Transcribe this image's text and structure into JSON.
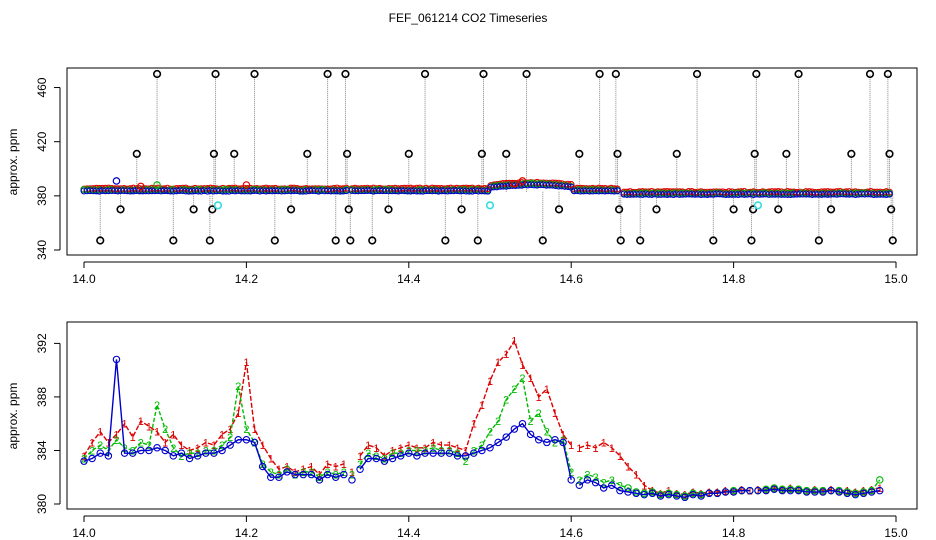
{
  "title": "FEF_061214  CO2 Timeseries",
  "chart_data": [
    {
      "type": "scatter",
      "ylabel": "approx. ppm",
      "xlim": [
        14.0,
        15.0
      ],
      "ylim": [
        340,
        470
      ],
      "x_ticks": [
        "14.0",
        "14.2",
        "14.4",
        "14.6",
        "14.8",
        "15.0"
      ],
      "y_ticks": [
        "340",
        "380",
        "420",
        "460"
      ],
      "colors": {
        "raw": "#000000",
        "s1": "#dd0000",
        "s2": "#00bb00",
        "s3": "#0000cc",
        "flag": "#33dddd",
        "drop": "#888888"
      },
      "spikes": [
        {
          "x": 14.02,
          "y": 347
        },
        {
          "x": 14.045,
          "y": 370
        },
        {
          "x": 14.065,
          "y": 411
        },
        {
          "x": 14.09,
          "y": 470
        },
        {
          "x": 14.11,
          "y": 347
        },
        {
          "x": 14.135,
          "y": 370
        },
        {
          "x": 14.155,
          "y": 347
        },
        {
          "x": 14.158,
          "y": 370
        },
        {
          "x": 14.16,
          "y": 411
        },
        {
          "x": 14.162,
          "y": 470
        },
        {
          "x": 14.185,
          "y": 411
        },
        {
          "x": 14.21,
          "y": 470
        },
        {
          "x": 14.235,
          "y": 347
        },
        {
          "x": 14.255,
          "y": 370
        },
        {
          "x": 14.275,
          "y": 411
        },
        {
          "x": 14.3,
          "y": 470
        },
        {
          "x": 14.31,
          "y": 347
        },
        {
          "x": 14.322,
          "y": 470
        },
        {
          "x": 14.324,
          "y": 411
        },
        {
          "x": 14.326,
          "y": 370
        },
        {
          "x": 14.328,
          "y": 347
        },
        {
          "x": 14.355,
          "y": 347
        },
        {
          "x": 14.375,
          "y": 370
        },
        {
          "x": 14.4,
          "y": 411
        },
        {
          "x": 14.42,
          "y": 470
        },
        {
          "x": 14.445,
          "y": 347
        },
        {
          "x": 14.465,
          "y": 370
        },
        {
          "x": 14.485,
          "y": 347
        },
        {
          "x": 14.49,
          "y": 411
        },
        {
          "x": 14.492,
          "y": 470
        },
        {
          "x": 14.52,
          "y": 411
        },
        {
          "x": 14.545,
          "y": 470
        },
        {
          "x": 14.565,
          "y": 347
        },
        {
          "x": 14.585,
          "y": 370
        },
        {
          "x": 14.61,
          "y": 411
        },
        {
          "x": 14.635,
          "y": 470
        },
        {
          "x": 14.655,
          "y": 470
        },
        {
          "x": 14.657,
          "y": 411
        },
        {
          "x": 14.659,
          "y": 370
        },
        {
          "x": 14.661,
          "y": 347
        },
        {
          "x": 14.685,
          "y": 347
        },
        {
          "x": 14.705,
          "y": 370
        },
        {
          "x": 14.73,
          "y": 411
        },
        {
          "x": 14.755,
          "y": 470
        },
        {
          "x": 14.775,
          "y": 347
        },
        {
          "x": 14.8,
          "y": 370
        },
        {
          "x": 14.822,
          "y": 347
        },
        {
          "x": 14.824,
          "y": 370
        },
        {
          "x": 14.826,
          "y": 411
        },
        {
          "x": 14.828,
          "y": 470
        },
        {
          "x": 14.855,
          "y": 370
        },
        {
          "x": 14.865,
          "y": 411
        },
        {
          "x": 14.88,
          "y": 470
        },
        {
          "x": 14.905,
          "y": 347
        },
        {
          "x": 14.92,
          "y": 370
        },
        {
          "x": 14.945,
          "y": 411
        },
        {
          "x": 14.968,
          "y": 470
        },
        {
          "x": 14.99,
          "y": 470
        },
        {
          "x": 14.992,
          "y": 411
        },
        {
          "x": 14.994,
          "y": 370
        },
        {
          "x": 14.996,
          "y": 347
        }
      ],
      "flagged": [
        {
          "x": 14.165,
          "y": 373
        },
        {
          "x": 14.5,
          "y": 373
        },
        {
          "x": 14.83,
          "y": 373
        }
      ],
      "extras": [
        {
          "x": 14.04,
          "y": 391,
          "s": 3
        },
        {
          "x": 14.07,
          "y": 387,
          "s": 1
        },
        {
          "x": 14.09,
          "y": 388,
          "s": 2
        },
        {
          "x": 14.2,
          "y": 388,
          "s": 1
        },
        {
          "x": 14.53,
          "y": 389,
          "s": 1
        },
        {
          "x": 14.54,
          "y": 391,
          "s": 1
        }
      ]
    },
    {
      "type": "line",
      "ylabel": "approx. ppm",
      "xlim": [
        14.0,
        15.0
      ],
      "ylim": [
        380,
        393
      ],
      "x_ticks": [
        "14.0",
        "14.2",
        "14.4",
        "14.6",
        "14.8",
        "15.0"
      ],
      "y_ticks": [
        "380",
        "384",
        "388",
        "392"
      ],
      "series": [
        {
          "label": "1",
          "color": "#dd0000",
          "x": [
            14.0,
            14.01,
            14.02,
            14.03,
            14.04,
            14.05,
            14.06,
            14.07,
            14.08,
            14.09,
            14.1,
            14.11,
            14.12,
            14.13,
            14.14,
            14.15,
            14.16,
            14.17,
            14.18,
            14.19,
            14.2,
            14.21,
            14.22,
            14.23,
            14.24,
            14.25,
            14.26,
            14.27,
            14.28,
            14.29,
            14.3,
            14.31,
            14.32,
            14.33,
            14.34,
            14.35,
            14.36,
            14.37,
            14.38,
            14.39,
            14.4,
            14.41,
            14.42,
            14.43,
            14.44,
            14.45,
            14.46,
            14.47,
            14.48,
            14.49,
            14.5,
            14.51,
            14.52,
            14.53,
            14.54,
            14.55,
            14.56,
            14.57,
            14.58,
            14.59,
            14.6,
            14.61,
            14.62,
            14.63,
            14.64,
            14.65,
            14.66,
            14.67,
            14.68,
            14.69,
            14.7,
            14.71,
            14.72,
            14.73,
            14.74,
            14.75,
            14.76,
            14.77,
            14.78,
            14.79,
            14.8,
            14.81,
            14.82,
            14.83,
            14.84,
            14.85,
            14.86,
            14.87,
            14.88,
            14.89,
            14.9,
            14.91,
            14.92,
            14.93,
            14.94,
            14.95,
            14.96,
            14.97,
            14.98
          ],
          "y": [
            383.6,
            384.6,
            385.4,
            384.6,
            385.2,
            386.0,
            385.0,
            386.2,
            385.8,
            385.4,
            384.6,
            385.2,
            384.4,
            384.0,
            384.2,
            384.6,
            384.4,
            385.2,
            385.6,
            386.8,
            390.6,
            385.6,
            384.4,
            383.4,
            382.6,
            382.8,
            382.4,
            382.6,
            382.8,
            382.2,
            383.0,
            382.8,
            383.0,
            382.4,
            383.6,
            384.4,
            384.2,
            383.6,
            384.0,
            384.2,
            384.4,
            384.2,
            384.2,
            384.6,
            384.4,
            384.4,
            384.2,
            384.0,
            386.0,
            387.4,
            389.2,
            390.6,
            391.2,
            392.2,
            390.4,
            389.4,
            388.0,
            388.6,
            386.8,
            385.2,
            384.4,
            384.2,
            384.4,
            384.2,
            384.6,
            384.2,
            383.6,
            382.8,
            382.2,
            381.4,
            381.0,
            380.8,
            381.0,
            380.8,
            380.7,
            380.9,
            380.8,
            380.9,
            380.9,
            381.0,
            381.0,
            381.1,
            381.0,
            381.1,
            381.1,
            381.2,
            381.1,
            381.2,
            381.1,
            381.0,
            381.1,
            381.0,
            381.1,
            381.0,
            381.0,
            380.9,
            381.0,
            381.1,
            381.2
          ]
        },
        {
          "label": "2",
          "color": "#00bb00",
          "x": [
            14.0,
            14.01,
            14.02,
            14.03,
            14.04,
            14.05,
            14.06,
            14.07,
            14.08,
            14.09,
            14.1,
            14.11,
            14.12,
            14.13,
            14.14,
            14.15,
            14.16,
            14.17,
            14.18,
            14.19,
            14.2,
            14.21,
            14.22,
            14.23,
            14.24,
            14.25,
            14.26,
            14.27,
            14.28,
            14.29,
            14.3,
            14.31,
            14.32,
            14.33,
            14.34,
            14.35,
            14.36,
            14.37,
            14.38,
            14.39,
            14.4,
            14.41,
            14.42,
            14.43,
            14.44,
            14.45,
            14.46,
            14.47,
            14.48,
            14.49,
            14.5,
            14.51,
            14.52,
            14.53,
            14.54,
            14.55,
            14.56,
            14.57,
            14.58,
            14.59,
            14.6,
            14.61,
            14.62,
            14.63,
            14.64,
            14.65,
            14.66,
            14.67,
            14.68,
            14.69,
            14.7,
            14.71,
            14.72,
            14.73,
            14.74,
            14.75,
            14.76,
            14.77,
            14.78,
            14.79,
            14.8,
            14.81,
            14.82,
            14.83,
            14.84,
            14.85,
            14.86,
            14.87,
            14.88,
            14.89,
            14.9,
            14.91,
            14.92,
            14.93,
            14.94,
            14.95,
            14.96,
            14.97,
            14.98
          ],
          "y": [
            383.4,
            384.0,
            384.4,
            384.0,
            384.8,
            384.2,
            384.0,
            384.6,
            384.4,
            387.4,
            385.6,
            384.2,
            383.6,
            383.8,
            383.8,
            384.0,
            384.0,
            384.4,
            385.0,
            388.8,
            385.6,
            384.6,
            383.0,
            382.4,
            382.2,
            382.6,
            382.2,
            382.4,
            382.4,
            382.0,
            382.4,
            382.2,
            382.4,
            382.2,
            383.0,
            383.8,
            383.6,
            383.4,
            383.8,
            383.8,
            384.0,
            384.0,
            384.0,
            384.2,
            384.0,
            384.0,
            383.8,
            383.2,
            384.0,
            384.4,
            385.4,
            386.2,
            387.8,
            388.6,
            389.4,
            386.2,
            386.8,
            385.4,
            384.6,
            384.8,
            382.4,
            381.8,
            382.2,
            382.0,
            381.6,
            381.8,
            381.4,
            381.2,
            380.9,
            380.8,
            380.9,
            380.7,
            380.8,
            380.7,
            380.6,
            380.8,
            380.7,
            380.8,
            380.8,
            380.9,
            381.0,
            381.0,
            381.0,
            381.0,
            381.1,
            381.2,
            381.1,
            381.1,
            381.1,
            381.0,
            381.0,
            381.0,
            381.0,
            381.0,
            380.9,
            380.8,
            380.9,
            381.0,
            381.8
          ]
        },
        {
          "label": "3",
          "color": "#0000cc",
          "x": [
            14.0,
            14.01,
            14.02,
            14.03,
            14.04,
            14.05,
            14.06,
            14.07,
            14.08,
            14.09,
            14.1,
            14.11,
            14.12,
            14.13,
            14.14,
            14.15,
            14.16,
            14.17,
            14.18,
            14.19,
            14.2,
            14.21,
            14.22,
            14.23,
            14.24,
            14.25,
            14.26,
            14.27,
            14.28,
            14.29,
            14.3,
            14.31,
            14.32,
            14.33,
            14.34,
            14.35,
            14.36,
            14.37,
            14.38,
            14.39,
            14.4,
            14.41,
            14.42,
            14.43,
            14.44,
            14.45,
            14.46,
            14.47,
            14.48,
            14.49,
            14.5,
            14.51,
            14.52,
            14.53,
            14.54,
            14.55,
            14.56,
            14.57,
            14.58,
            14.59,
            14.6,
            14.61,
            14.62,
            14.63,
            14.64,
            14.65,
            14.66,
            14.67,
            14.68,
            14.69,
            14.7,
            14.71,
            14.72,
            14.73,
            14.74,
            14.75,
            14.76,
            14.77,
            14.78,
            14.79,
            14.8,
            14.81,
            14.82,
            14.83,
            14.84,
            14.85,
            14.86,
            14.87,
            14.88,
            14.89,
            14.9,
            14.91,
            14.92,
            14.93,
            14.94,
            14.95,
            14.96,
            14.97,
            14.98
          ],
          "y": [
            383.2,
            383.4,
            383.8,
            383.6,
            390.8,
            383.8,
            383.8,
            384.0,
            384.0,
            384.2,
            384.0,
            383.6,
            383.8,
            383.4,
            383.6,
            383.8,
            383.8,
            384.0,
            384.4,
            384.8,
            384.8,
            384.6,
            382.8,
            382.0,
            382.0,
            382.4,
            382.2,
            382.2,
            382.2,
            381.8,
            382.2,
            382.0,
            382.2,
            381.8,
            382.6,
            383.4,
            383.4,
            383.2,
            383.4,
            383.6,
            383.8,
            383.6,
            383.8,
            383.8,
            383.8,
            383.8,
            383.6,
            383.6,
            383.8,
            384.0,
            384.2,
            384.6,
            385.0,
            385.6,
            386.0,
            385.2,
            384.8,
            384.6,
            384.8,
            384.6,
            381.8,
            381.4,
            381.8,
            381.6,
            381.2,
            381.4,
            381.0,
            380.9,
            380.8,
            380.7,
            380.8,
            380.6,
            380.7,
            380.6,
            380.5,
            380.7,
            380.6,
            380.8,
            380.8,
            380.9,
            380.9,
            381.0,
            381.0,
            381.0,
            381.0,
            381.1,
            381.0,
            381.0,
            381.0,
            380.9,
            380.9,
            380.9,
            381.0,
            380.9,
            380.8,
            380.7,
            380.8,
            380.9,
            381.0
          ]
        }
      ]
    }
  ]
}
